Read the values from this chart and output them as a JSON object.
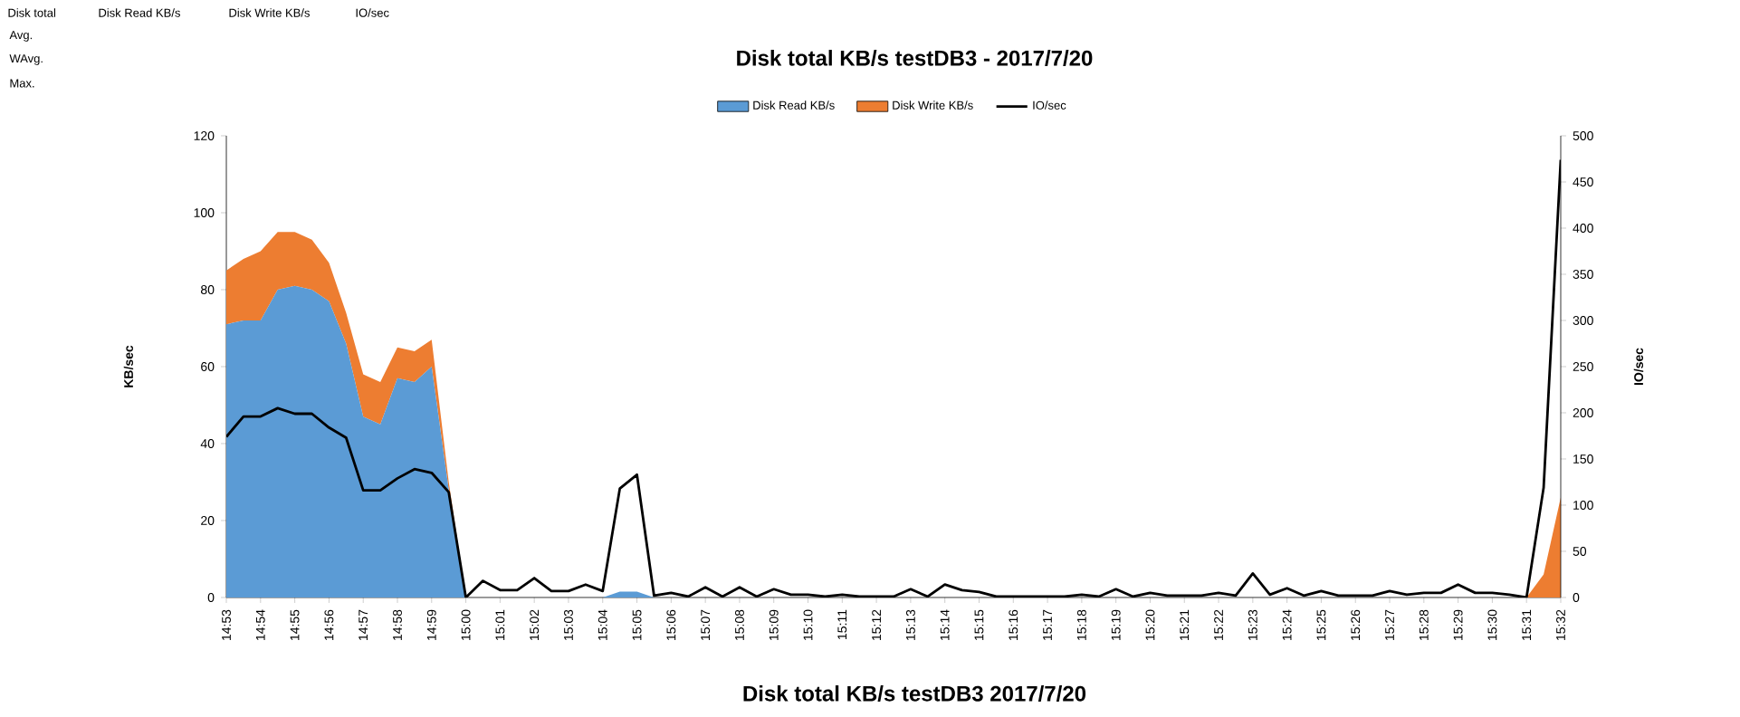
{
  "chart_data": {
    "type": "area",
    "title": "Disk total KB/s testDB3 - 2017/7/20",
    "ylabel": "KB/sec",
    "y2label": "IO/sec",
    "categories": [
      "14:53",
      null,
      "14:54",
      null,
      "14:55",
      null,
      "14:56",
      null,
      "14:57",
      null,
      "14:58",
      null,
      "14:59",
      null,
      "15:00",
      null,
      "15:01",
      null,
      "15:02",
      null,
      "15:03",
      null,
      "15:04",
      null,
      "15:05",
      null,
      "15:06",
      null,
      "15:07",
      null,
      "15:08",
      null,
      "15:09",
      null,
      "15:10",
      null,
      "15:11",
      null,
      "15:12",
      null,
      "15:13",
      null,
      "15:14",
      null,
      "15:15",
      null,
      "15:16",
      null,
      "15:17",
      null,
      "15:18",
      null,
      "15:19",
      null,
      "15:20",
      null,
      "15:21",
      null,
      "15:22",
      null,
      "15:23",
      null,
      "15:24",
      null,
      "15:25",
      null,
      "15:26",
      null,
      "15:27",
      null,
      "15:28",
      null,
      "15:29",
      null,
      "15:30",
      null,
      "15:31",
      null,
      "15:32"
    ],
    "stacked": true,
    "series": [
      {
        "name": "Disk Read KB/s",
        "color": "#5b9bd5",
        "values": [
          71,
          72,
          72,
          80,
          81,
          80,
          77,
          66,
          47,
          45,
          57,
          56,
          60,
          28,
          0,
          0,
          0,
          0,
          0,
          0,
          0,
          0,
          0,
          1.5,
          1.5,
          0,
          0,
          0,
          0,
          0,
          0,
          0,
          0,
          0,
          0,
          0,
          0,
          0,
          0,
          0,
          0,
          0,
          0,
          0,
          0,
          0,
          0,
          0,
          0,
          0,
          0,
          0,
          0,
          0,
          0,
          0,
          0,
          0,
          0,
          0,
          0,
          0,
          0,
          0,
          0,
          0,
          0,
          0,
          0,
          0,
          0,
          0,
          0,
          0,
          0,
          0,
          0,
          0,
          0
        ]
      },
      {
        "name": "Disk Write KB/s",
        "color": "#ed7d31",
        "values": [
          14,
          16,
          18,
          15,
          14,
          13,
          10,
          8,
          11,
          11,
          8,
          8,
          7,
          2,
          0,
          0,
          0,
          0,
          0,
          0,
          0,
          0,
          0,
          0,
          0,
          0,
          0,
          0,
          0,
          0,
          0,
          0,
          0,
          0,
          0,
          0,
          0,
          0,
          0,
          0,
          0,
          0,
          0,
          0,
          0,
          0,
          0,
          0,
          0,
          0,
          0,
          0,
          0,
          0,
          0,
          0,
          0,
          0,
          0,
          0,
          0,
          0,
          0,
          0,
          0,
          0,
          0,
          0,
          0,
          0,
          0,
          0,
          0,
          0,
          0,
          0,
          0,
          6,
          26
        ]
      },
      {
        "name": "IO/sec",
        "type": "line",
        "axis": "y2",
        "color": "#000000",
        "values": [
          174,
          196,
          196,
          205,
          199,
          199,
          184,
          173,
          116,
          116,
          129,
          139,
          135,
          114,
          0,
          18,
          8,
          8,
          21,
          7,
          7,
          14,
          7,
          118,
          133,
          2,
          5,
          1,
          11,
          1,
          11,
          1,
          9,
          3,
          3,
          1,
          3,
          1,
          1,
          1,
          9,
          1,
          14,
          8,
          6,
          1,
          1,
          1,
          1,
          1,
          3,
          1,
          9,
          1,
          5,
          2,
          2,
          2,
          5,
          2,
          26,
          3,
          10,
          2,
          7,
          2,
          2,
          2,
          7,
          3,
          5,
          5,
          14,
          5,
          5,
          3,
          0,
          119,
          474
        ]
      }
    ],
    "ylim": [
      0,
      120
    ],
    "yticks": [
      0,
      20,
      40,
      60,
      80,
      100,
      120
    ],
    "y2lim": [
      0,
      500
    ],
    "y2ticks": [
      0,
      50,
      100,
      150,
      200,
      250,
      300,
      350,
      400,
      450,
      500
    ],
    "legend": "top",
    "grid": false,
    "marker": "none",
    "line_style": "solid",
    "annotations": [
      "Disk total",
      "Disk Read KB/s",
      "Disk Write KB/s",
      "IO/sec",
      "Avg.",
      "WAvg.",
      "Max.",
      "Disk total KB/s testDB3  2017/7/20"
    ]
  }
}
